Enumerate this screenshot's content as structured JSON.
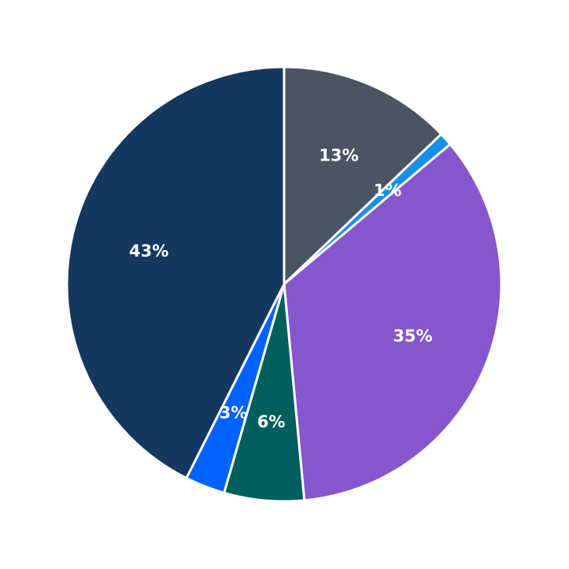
{
  "chart_data": {
    "type": "pie",
    "values": [
      13,
      1,
      35,
      6,
      3,
      43
    ],
    "value_labels": [
      "13%",
      "1%",
      "35%",
      "6%",
      "3%",
      "43%"
    ],
    "colors": [
      "#4a5462",
      "#1a8fe8",
      "#8657cc",
      "#005f5c",
      "#0062ff",
      "#15385f"
    ]
  }
}
